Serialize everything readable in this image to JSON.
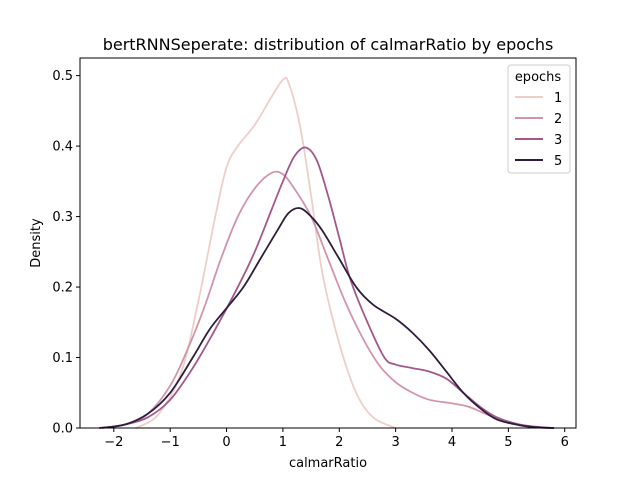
{
  "chart_data": {
    "type": "line",
    "title": "bertRNNSeperate: distribution of calmarRatio by epochs",
    "xlabel": "calmarRatio",
    "ylabel": "Density",
    "xlim": [
      -2.6,
      6.2
    ],
    "ylim": [
      0,
      0.525
    ],
    "xticks": [
      "−2",
      "−1",
      "0",
      "1",
      "2",
      "3",
      "4",
      "5",
      "6"
    ],
    "xtick_values": [
      -2,
      -1,
      0,
      1,
      2,
      3,
      4,
      5,
      6
    ],
    "yticks": [
      "0.0",
      "0.1",
      "0.2",
      "0.3",
      "0.4",
      "0.5"
    ],
    "ytick_values": [
      0,
      0.1,
      0.2,
      0.3,
      0.4,
      0.5
    ],
    "grid": false,
    "legend": {
      "title": "epochs",
      "position": "top-right"
    },
    "series": [
      {
        "name": "1",
        "color": "#eecfc8",
        "x": [
          -1.6,
          -1.2,
          -0.8,
          -0.5,
          -0.2,
          0.0,
          0.2,
          0.5,
          0.8,
          1.0,
          1.1,
          1.3,
          1.5,
          1.7,
          2.0,
          2.3,
          2.6,
          3.0
        ],
        "y": [
          0.0,
          0.02,
          0.08,
          0.18,
          0.3,
          0.37,
          0.4,
          0.43,
          0.47,
          0.494,
          0.49,
          0.43,
          0.33,
          0.22,
          0.12,
          0.05,
          0.015,
          0.0
        ]
      },
      {
        "name": "2",
        "color": "#d195ab",
        "x": [
          -2.2,
          -1.8,
          -1.4,
          -1.0,
          -0.7,
          -0.4,
          -0.1,
          0.2,
          0.5,
          0.8,
          1.0,
          1.2,
          1.5,
          1.8,
          2.1,
          2.4,
          2.7,
          3.0,
          3.3,
          3.6,
          4.0,
          4.3,
          4.6,
          5.0,
          5.4,
          5.8
        ],
        "y": [
          0.0,
          0.005,
          0.02,
          0.06,
          0.11,
          0.17,
          0.24,
          0.3,
          0.34,
          0.362,
          0.36,
          0.34,
          0.3,
          0.24,
          0.18,
          0.13,
          0.09,
          0.065,
          0.05,
          0.04,
          0.035,
          0.03,
          0.02,
          0.008,
          0.002,
          0.0
        ]
      },
      {
        "name": "3",
        "color": "#a3588a",
        "x": [
          -2.2,
          -1.8,
          -1.4,
          -1.0,
          -0.6,
          -0.2,
          0.2,
          0.5,
          0.8,
          1.0,
          1.2,
          1.4,
          1.6,
          1.8,
          2.0,
          2.2,
          2.5,
          2.8,
          3.0,
          3.3,
          3.6,
          3.9,
          4.2,
          4.5,
          4.8,
          5.2,
          5.6,
          5.8
        ],
        "y": [
          0.0,
          0.005,
          0.015,
          0.04,
          0.085,
          0.14,
          0.2,
          0.25,
          0.31,
          0.35,
          0.385,
          0.398,
          0.38,
          0.33,
          0.27,
          0.21,
          0.15,
          0.1,
          0.09,
          0.085,
          0.08,
          0.07,
          0.05,
          0.03,
          0.015,
          0.005,
          0.001,
          0.0
        ]
      },
      {
        "name": "5",
        "color": "#2d1e3e",
        "x": [
          -2.25,
          -1.8,
          -1.4,
          -1.0,
          -0.6,
          -0.3,
          0.0,
          0.3,
          0.6,
          0.9,
          1.1,
          1.3,
          1.5,
          1.7,
          2.0,
          2.3,
          2.6,
          3.0,
          3.3,
          3.6,
          3.9,
          4.2,
          4.5,
          4.8,
          5.2,
          5.5,
          5.8
        ],
        "y": [
          0.0,
          0.005,
          0.02,
          0.05,
          0.1,
          0.14,
          0.17,
          0.2,
          0.24,
          0.28,
          0.305,
          0.312,
          0.3,
          0.28,
          0.24,
          0.2,
          0.175,
          0.155,
          0.135,
          0.11,
          0.08,
          0.05,
          0.028,
          0.012,
          0.004,
          0.001,
          0.0
        ]
      }
    ]
  }
}
